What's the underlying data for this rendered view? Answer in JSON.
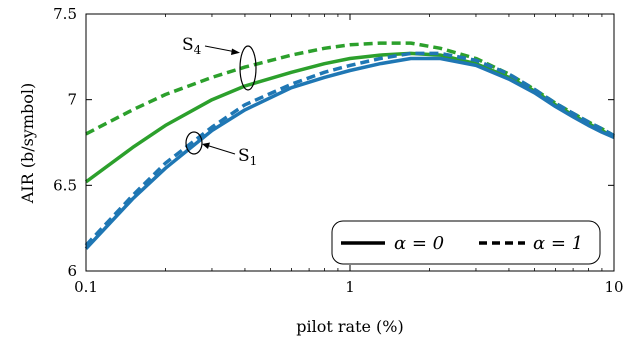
{
  "chart_data": {
    "type": "line",
    "xlabel": "pilot rate (%)",
    "ylabel": "AIR (b/symbol)",
    "xscale": "log",
    "xlim": [
      0.1,
      10
    ],
    "ylim": [
      6,
      7.5
    ],
    "x_ticks": [
      0.1,
      1,
      10
    ],
    "x_tick_labels": [
      "0.1",
      "1",
      "10"
    ],
    "y_ticks": [
      6,
      6.5,
      7,
      7.5
    ],
    "y_tick_labels": [
      "6",
      "6.5",
      "7",
      "7.5"
    ],
    "grid": false,
    "legend": {
      "placement": "bottom-right",
      "entries": [
        {
          "style": "solid",
          "label": "α = 0"
        },
        {
          "style": "dashed",
          "label": "α = 1"
        }
      ]
    },
    "colors": {
      "S4": "#2ca02c",
      "S1": "#1f77b4"
    },
    "series": [
      {
        "group": "S4",
        "style": "dashed",
        "color": "#2ca02c",
        "x": [
          0.1,
          0.15,
          0.2,
          0.3,
          0.4,
          0.6,
          0.8,
          1.0,
          1.3,
          1.7,
          2.2,
          3.0,
          4.0,
          5.0,
          6.0,
          7.0,
          8.0,
          9.0,
          10.0
        ],
        "y": [
          6.8,
          6.94,
          7.03,
          7.13,
          7.19,
          7.26,
          7.3,
          7.32,
          7.33,
          7.33,
          7.3,
          7.24,
          7.15,
          7.06,
          6.98,
          6.92,
          6.87,
          6.83,
          6.79
        ]
      },
      {
        "group": "S4",
        "style": "solid",
        "color": "#2ca02c",
        "x": [
          0.1,
          0.15,
          0.2,
          0.3,
          0.4,
          0.6,
          0.8,
          1.0,
          1.3,
          1.7,
          2.2,
          3.0,
          4.0,
          5.0,
          6.0,
          7.0,
          8.0,
          9.0,
          10.0
        ],
        "y": [
          6.52,
          6.72,
          6.85,
          7.0,
          7.08,
          7.16,
          7.21,
          7.24,
          7.26,
          7.27,
          7.26,
          7.21,
          7.13,
          7.05,
          6.97,
          6.91,
          6.86,
          6.82,
          6.78
        ]
      },
      {
        "group": "S1",
        "style": "dashed",
        "color": "#1f77b4",
        "x": [
          0.1,
          0.15,
          0.2,
          0.3,
          0.4,
          0.6,
          0.8,
          1.0,
          1.3,
          1.7,
          2.2,
          3.0,
          4.0,
          5.0,
          6.0,
          7.0,
          8.0,
          9.0,
          10.0
        ],
        "y": [
          6.15,
          6.44,
          6.63,
          6.84,
          6.97,
          7.09,
          7.16,
          7.2,
          7.24,
          7.27,
          7.27,
          7.23,
          7.15,
          7.06,
          6.98,
          6.92,
          6.87,
          6.83,
          6.79
        ]
      },
      {
        "group": "S1",
        "style": "solid",
        "color": "#1f77b4",
        "x": [
          0.1,
          0.15,
          0.2,
          0.3,
          0.4,
          0.6,
          0.8,
          1.0,
          1.3,
          1.7,
          2.2,
          3.0,
          4.0,
          5.0,
          6.0,
          7.0,
          8.0,
          9.0,
          10.0
        ],
        "y": [
          6.13,
          6.42,
          6.6,
          6.82,
          6.94,
          7.07,
          7.13,
          7.17,
          7.21,
          7.24,
          7.24,
          7.2,
          7.12,
          7.04,
          6.96,
          6.9,
          6.85,
          6.81,
          6.78
        ]
      }
    ],
    "annotations": [
      {
        "id": "S4",
        "base": "S",
        "sub": "4"
      },
      {
        "id": "S1",
        "base": "S",
        "sub": "1"
      }
    ]
  }
}
